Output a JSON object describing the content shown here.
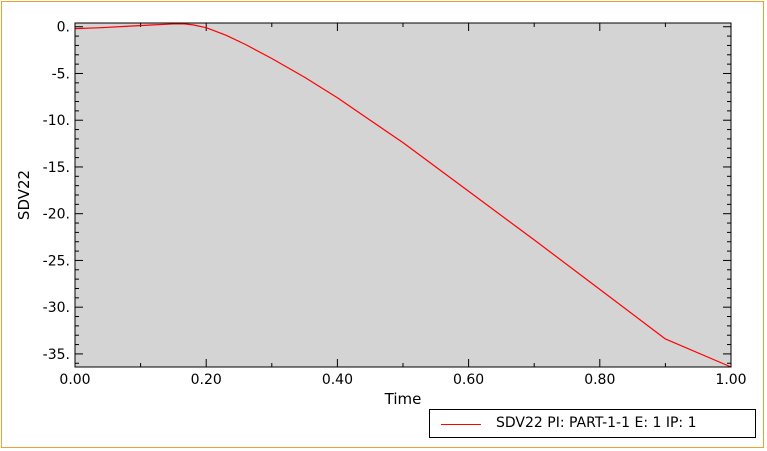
{
  "colors": {
    "frame": "#f0a030",
    "plot_background": "#d4d4d4",
    "series": "#ff0000"
  },
  "chart_data": {
    "type": "line",
    "xlabel": "Time",
    "ylabel": "SDV22",
    "xlim": [
      0.0,
      1.0
    ],
    "ylim": [
      -36.4,
      0.4
    ],
    "x_ticks": [
      0.0,
      0.2,
      0.4,
      0.6,
      0.8,
      1.0
    ],
    "x_tick_labels": [
      "0.00",
      "0.20",
      "0.40",
      "0.60",
      "0.80",
      "1.00"
    ],
    "y_ticks": [
      0,
      -5,
      -10,
      -15,
      -20,
      -25,
      -30,
      -35
    ],
    "y_tick_labels": [
      "0.",
      "-5.",
      "-10.",
      "-15.",
      "-20.",
      "-25.",
      "-30.",
      "-35."
    ],
    "grid": false,
    "legend_placement": "bottom-right, outside plot",
    "series": [
      {
        "name": "SDV22 PI: PART-1-1 E: 1 IP: 1",
        "x": [
          0.0,
          0.04,
          0.08,
          0.12,
          0.15,
          0.165,
          0.18,
          0.2,
          0.23,
          0.26,
          0.3,
          0.35,
          0.4,
          0.45,
          0.5,
          0.6,
          0.7,
          0.8,
          0.9,
          1.0
        ],
        "y": [
          -0.2,
          -0.1,
          0.05,
          0.2,
          0.3,
          0.32,
          0.2,
          -0.1,
          -0.9,
          -1.9,
          -3.4,
          -5.4,
          -7.6,
          -10.0,
          -12.4,
          -17.6,
          -22.8,
          -28.1,
          -33.4,
          -36.4
        ]
      }
    ]
  }
}
